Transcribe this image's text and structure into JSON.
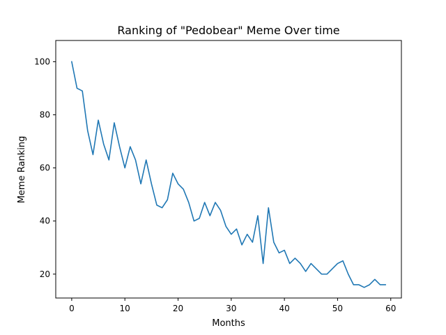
{
  "chart_data": {
    "type": "line",
    "title": "Ranking of \"Pedobear\" Meme Over time",
    "xlabel": "Months",
    "ylabel": "Meme Ranking",
    "xlim": [
      -3,
      62
    ],
    "ylim": [
      11,
      108
    ],
    "grid": false,
    "x_ticks": [
      0,
      10,
      20,
      30,
      40,
      50,
      60
    ],
    "y_ticks": [
      20,
      40,
      60,
      80,
      100
    ],
    "line_color": "#1f77b4",
    "series": [
      {
        "x": [
          0,
          1,
          2,
          3,
          4,
          5,
          6,
          7,
          8,
          9,
          10,
          11,
          12,
          13,
          14,
          15,
          16,
          17,
          18,
          19,
          20,
          21,
          22,
          23,
          24,
          25,
          26,
          27,
          28,
          29,
          30,
          31,
          32,
          33,
          34,
          35,
          36,
          37,
          38,
          39,
          40,
          41,
          42,
          43,
          44,
          45,
          46,
          47,
          48,
          49,
          50,
          51,
          52,
          53,
          54,
          55,
          56,
          57,
          58,
          59
        ],
        "values": [
          100,
          90,
          89,
          74,
          65,
          78,
          69,
          63,
          77,
          68,
          60,
          68,
          63,
          54,
          63,
          54,
          46,
          45,
          48,
          58,
          54,
          52,
          47,
          40,
          41,
          47,
          42,
          47,
          44,
          38,
          35,
          37,
          31,
          35,
          32,
          42,
          24,
          45,
          32,
          28,
          29,
          24,
          26,
          24,
          21,
          24,
          22,
          20,
          20,
          22,
          24,
          25,
          20,
          16,
          16,
          15,
          16,
          18,
          16,
          16
        ]
      }
    ]
  }
}
